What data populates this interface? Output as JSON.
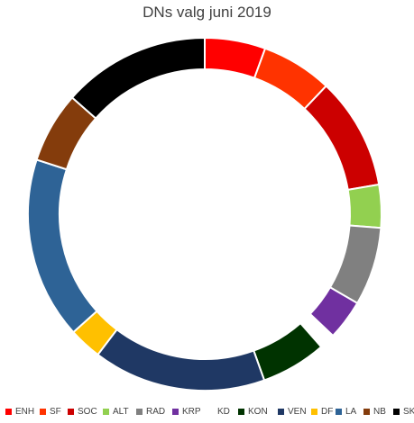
{
  "chart_data": {
    "type": "pie",
    "title": "DNs valg juni 2019",
    "donut": true,
    "legend_position": "bottom",
    "categories": [
      "ENH",
      "SF",
      "SOC",
      "ALT",
      "RAD",
      "KRP",
      "KD",
      "KON",
      "VEN",
      "DF",
      "LA",
      "NB",
      "SK"
    ],
    "values": [
      6.5,
      7.6,
      12.0,
      4.6,
      8.4,
      4.3,
      1.7,
      7.0,
      18.5,
      3.5,
      19.5,
      7.6,
      15.8
    ],
    "colors": [
      "#ff0000",
      "#ff3300",
      "#cc0000",
      "#92d050",
      "#808080",
      "#7030a0",
      "#ffffff",
      "#003300",
      "#1f3864",
      "#ffc000",
      "#2e6396",
      "#843c0c",
      "#000000"
    ]
  }
}
